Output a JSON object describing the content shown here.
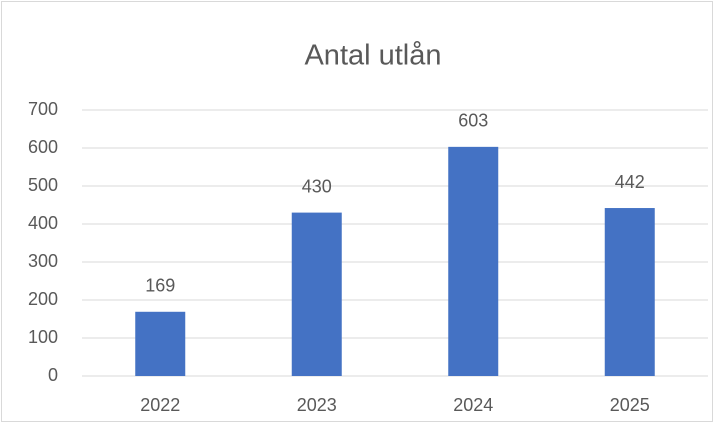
{
  "chart_data": {
    "type": "bar",
    "title": "Antal utlån",
    "categories": [
      "2022",
      "2023",
      "2024",
      "2025"
    ],
    "values": [
      169,
      430,
      603,
      442
    ],
    "color": "#4472c4",
    "ylim": [
      0,
      700
    ],
    "yticks": [
      0,
      100,
      200,
      300,
      400,
      500,
      600,
      700
    ],
    "grid": true,
    "data_labels": true
  }
}
